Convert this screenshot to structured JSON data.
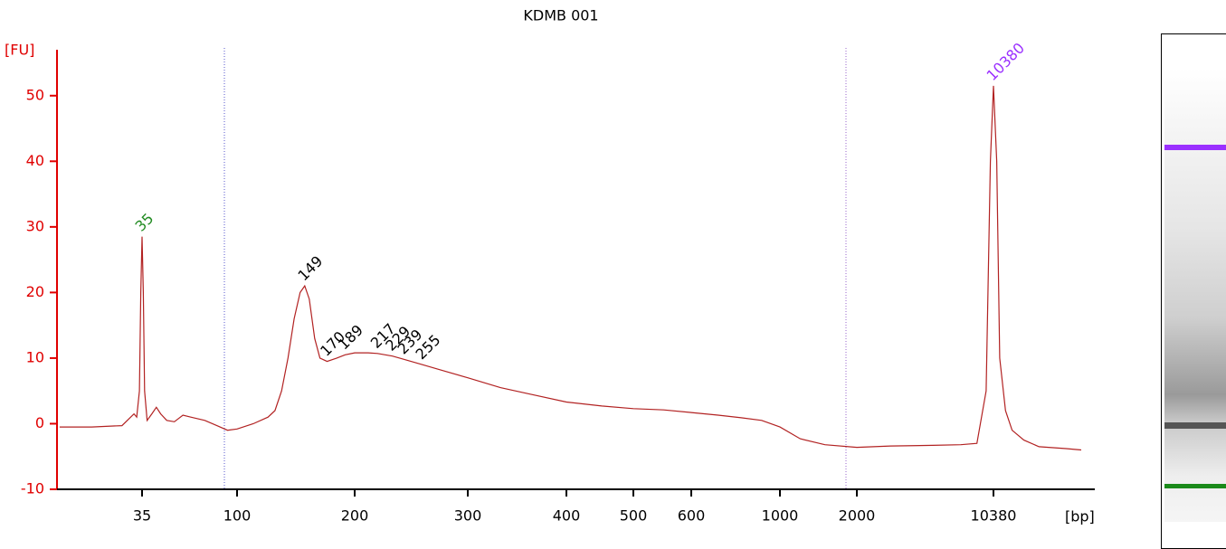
{
  "chart_data": {
    "type": "line",
    "title": "KDMB 001",
    "ylabel": "[FU]",
    "xlabel": "[bp]",
    "color": "#b22222",
    "axis_color": "#e00000",
    "xlim": [
      13.6,
      30000
    ],
    "ylim": [
      -10,
      57
    ],
    "xticks": [
      35,
      100,
      200,
      300,
      400,
      500,
      600,
      1000,
      2000,
      10380
    ],
    "yticks": [
      -10,
      0,
      10,
      20,
      30,
      40,
      50
    ],
    "x": [
      14,
      20,
      28,
      32,
      33,
      34,
      34.5,
      35,
      35.5,
      36,
      37,
      39,
      41,
      43,
      46,
      50,
      55,
      60,
      70,
      80,
      90,
      100,
      110,
      120,
      125,
      130,
      135,
      140,
      145,
      149,
      153,
      158,
      163,
      170,
      180,
      189,
      200,
      210,
      217,
      229,
      239,
      255,
      270,
      300,
      330,
      360,
      400,
      450,
      500,
      550,
      600,
      700,
      800,
      900,
      1000,
      1200,
      1500,
      2000,
      3000,
      5000,
      7000,
      8500,
      9500,
      10000,
      10380,
      10800,
      11200,
      12000,
      13000,
      15000,
      18000,
      25000,
      30000
    ],
    "values": [
      -0.5,
      -0.5,
      -0.3,
      1.5,
      1.0,
      5,
      20,
      28.5,
      20,
      5,
      0.5,
      1.5,
      2.5,
      1.5,
      0.5,
      0.3,
      1.3,
      1.0,
      0.5,
      -0.3,
      -1.0,
      -0.8,
      0,
      1.0,
      2,
      5,
      10,
      16,
      20,
      21,
      19,
      13,
      10,
      9.5,
      10,
      10.5,
      10.8,
      10.8,
      10.7,
      10.3,
      9.8,
      9.0,
      8.3,
      7,
      5.5,
      4.5,
      3.3,
      2.7,
      2.3,
      2.1,
      1.7,
      1.3,
      0.9,
      0.5,
      -0.5,
      -2.3,
      -3.2,
      -3.6,
      -3.4,
      -3.3,
      -3.2,
      -3.0,
      5,
      40,
      51.5,
      40,
      10,
      2,
      -1,
      -2.5,
      -3.5,
      -3.8,
      -4.0
    ],
    "peaks": [
      {
        "label": 35,
        "color": "#228b22"
      },
      {
        "label": 149,
        "color": "#000000"
      },
      {
        "label": 170,
        "color": "#000000"
      },
      {
        "label": 189,
        "color": "#000000"
      },
      {
        "label": 217,
        "color": "#000000"
      },
      {
        "label": 229,
        "color": "#000000"
      },
      {
        "label": 239,
        "color": "#000000"
      },
      {
        "label": 255,
        "color": "#000000"
      },
      {
        "label": 10380,
        "color": "#9b30ff"
      }
    ]
  }
}
